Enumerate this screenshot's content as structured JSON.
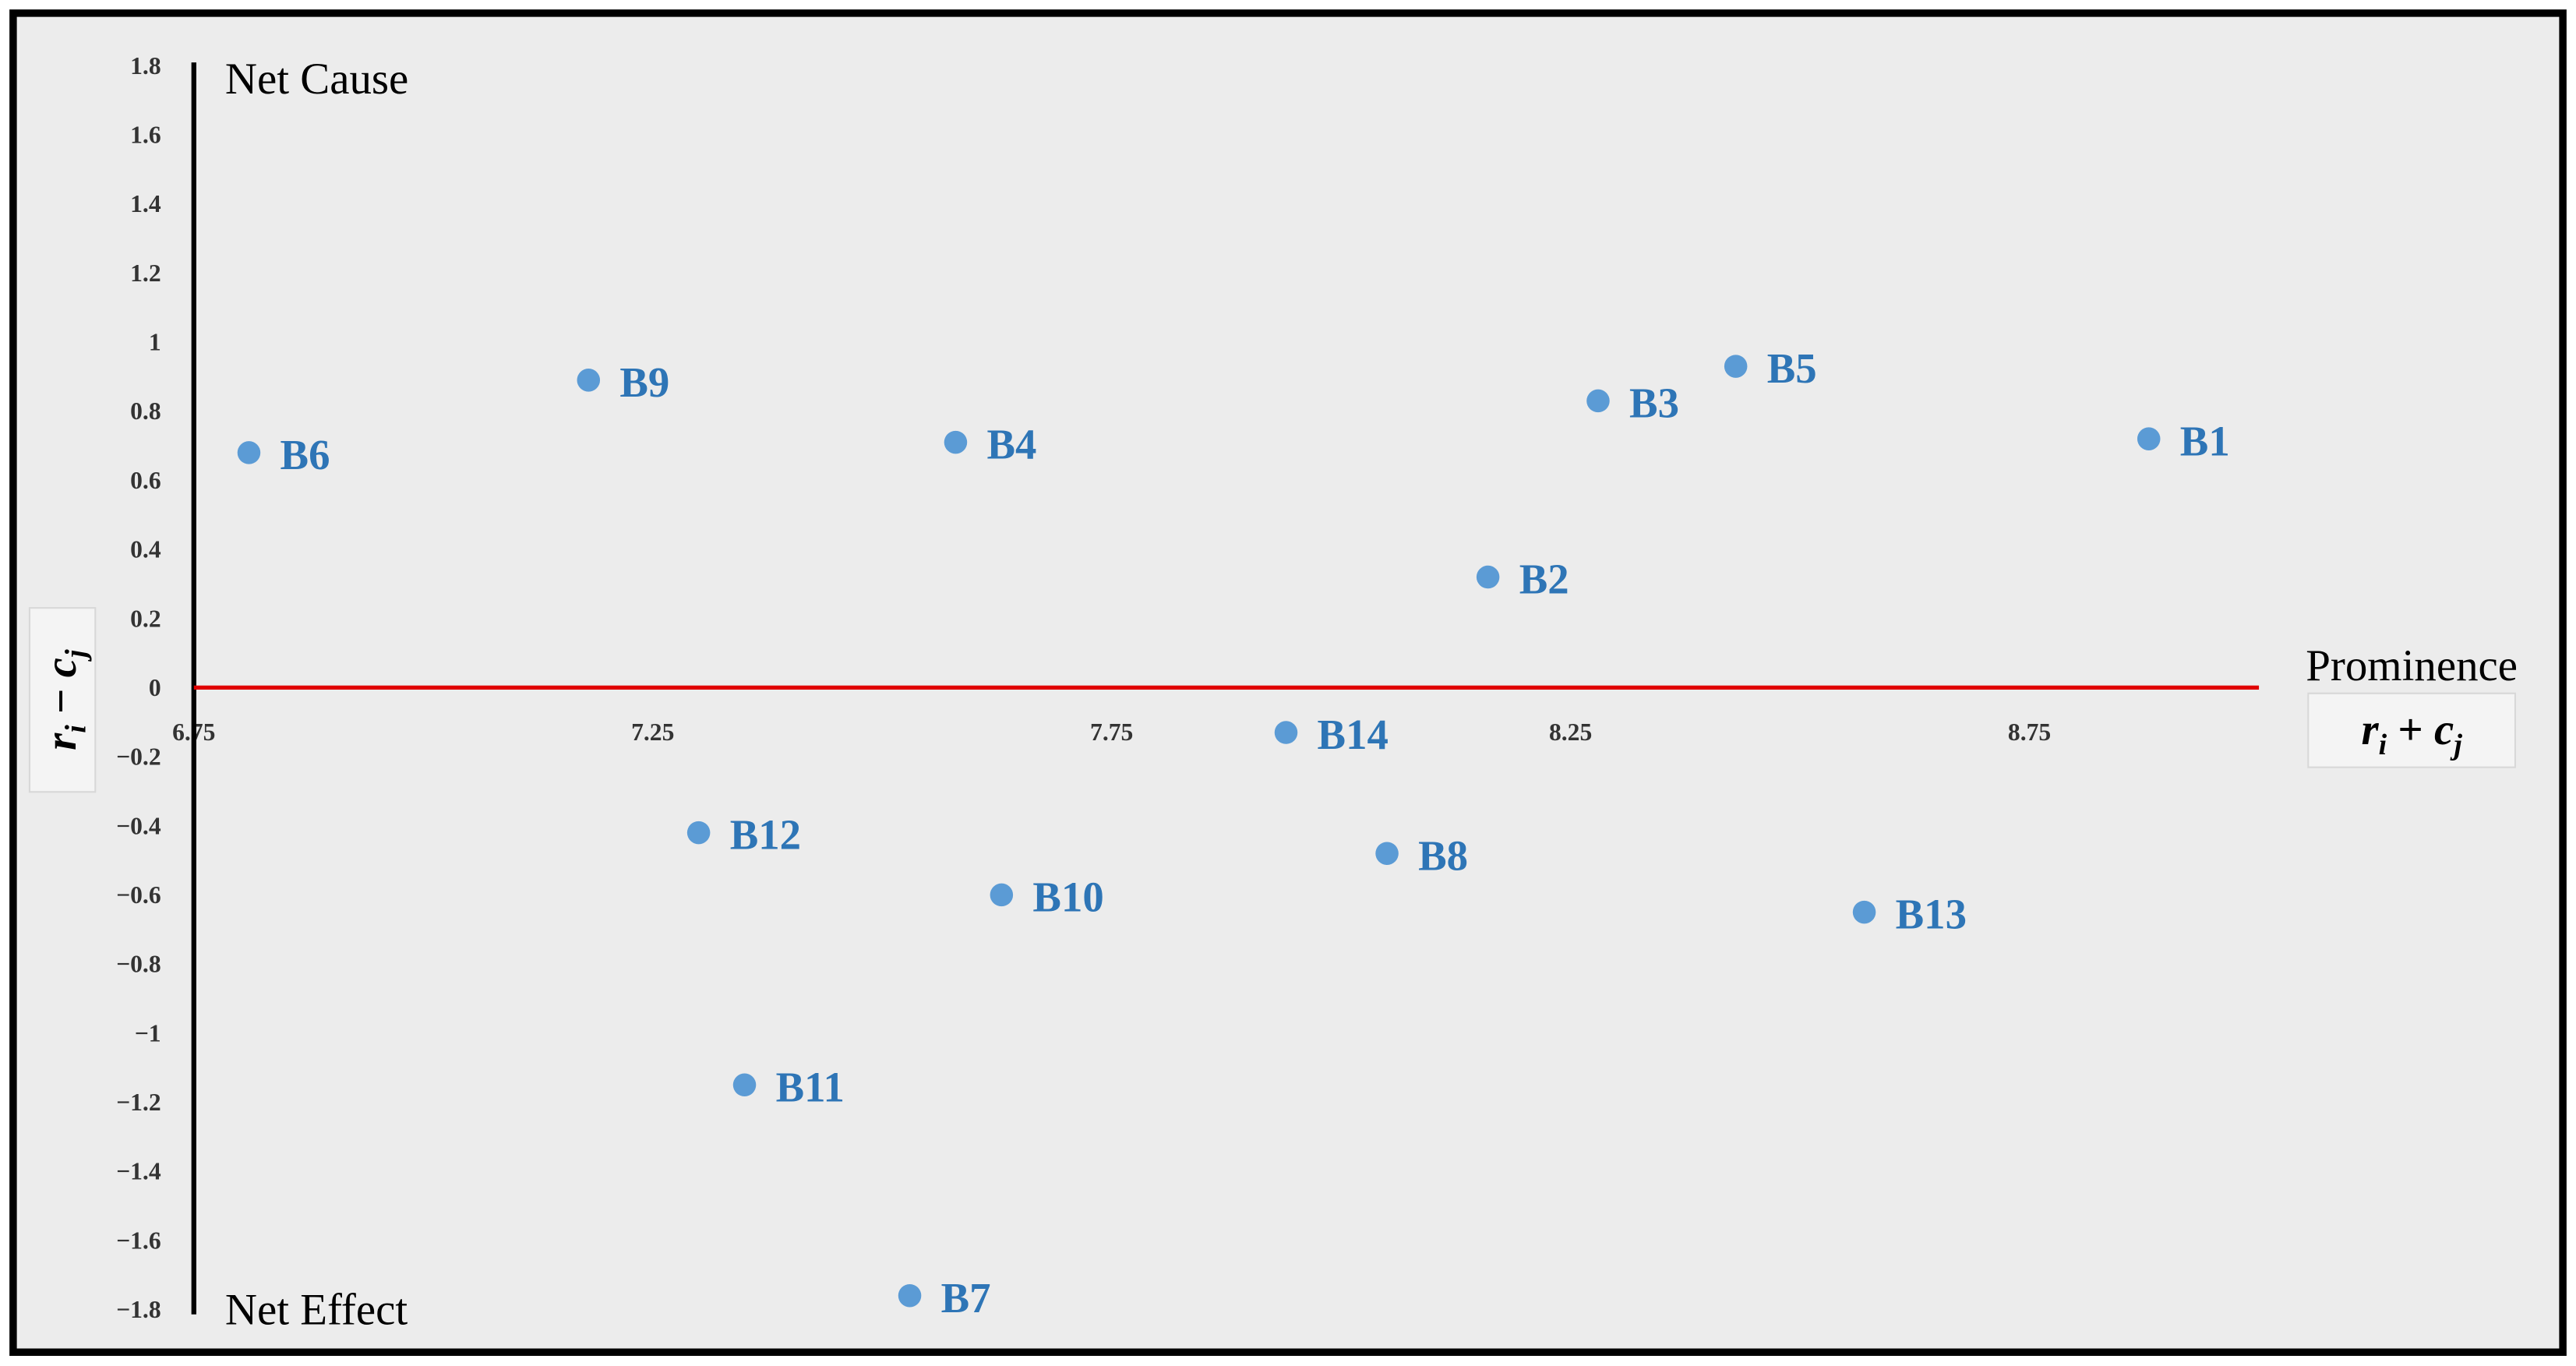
{
  "chart_data": {
    "type": "scatter",
    "top_label": "Net Cause",
    "bottom_label": "Net Effect",
    "x_title": "Prominence",
    "x_label": [
      "r",
      "i",
      " + ",
      "c",
      "j"
    ],
    "y_label": [
      "r",
      "i",
      " − ",
      "c",
      "j"
    ],
    "x": [
      6.81,
      7.18,
      7.58,
      8.28,
      8.43,
      8.88,
      8.16,
      7.94,
      7.3,
      8.05,
      7.63,
      8.57,
      7.35,
      7.53
    ],
    "series": [
      {
        "color": "#5b9bd5",
        "label_color": "#2e75b6",
        "values": [
          0.68,
          0.89,
          0.71,
          0.83,
          0.93,
          0.72,
          0.32,
          -0.13,
          -0.42,
          -0.48,
          -0.6,
          -0.65,
          -1.15,
          -1.76
        ],
        "labels": [
          "B6",
          "B9",
          "B4",
          "B3",
          "B5",
          "B1",
          "B2",
          "B14",
          "B12",
          "B8",
          "B10",
          "B13",
          "B11",
          "B7"
        ]
      }
    ],
    "xlim": [
      6.75,
      9.0
    ],
    "ylim": [
      -1.8,
      1.8
    ],
    "xticks": [
      6.75,
      7.25,
      7.75,
      8.25,
      8.75
    ],
    "yticks": [
      1.8,
      1.6,
      1.4,
      1.2,
      1,
      0.8,
      0.6,
      0.4,
      0.2,
      0,
      {
        "value": -0.2,
        "label": "−0.2"
      },
      {
        "value": -0.4,
        "label": "−0.4"
      },
      {
        "value": -0.6,
        "label": "−0.6"
      },
      {
        "value": -0.8,
        "label": "−0.8"
      },
      {
        "value": -1,
        "label": "−1"
      },
      {
        "value": -1.2,
        "label": "−1.2"
      },
      {
        "value": -1.4,
        "label": "−1.4"
      },
      {
        "value": -1.6,
        "label": "−1.6"
      },
      {
        "value": -1.8,
        "label": "−1.8"
      }
    ],
    "axis_color": "#000000",
    "zero_line_color": "#e00000",
    "grid": false
  }
}
